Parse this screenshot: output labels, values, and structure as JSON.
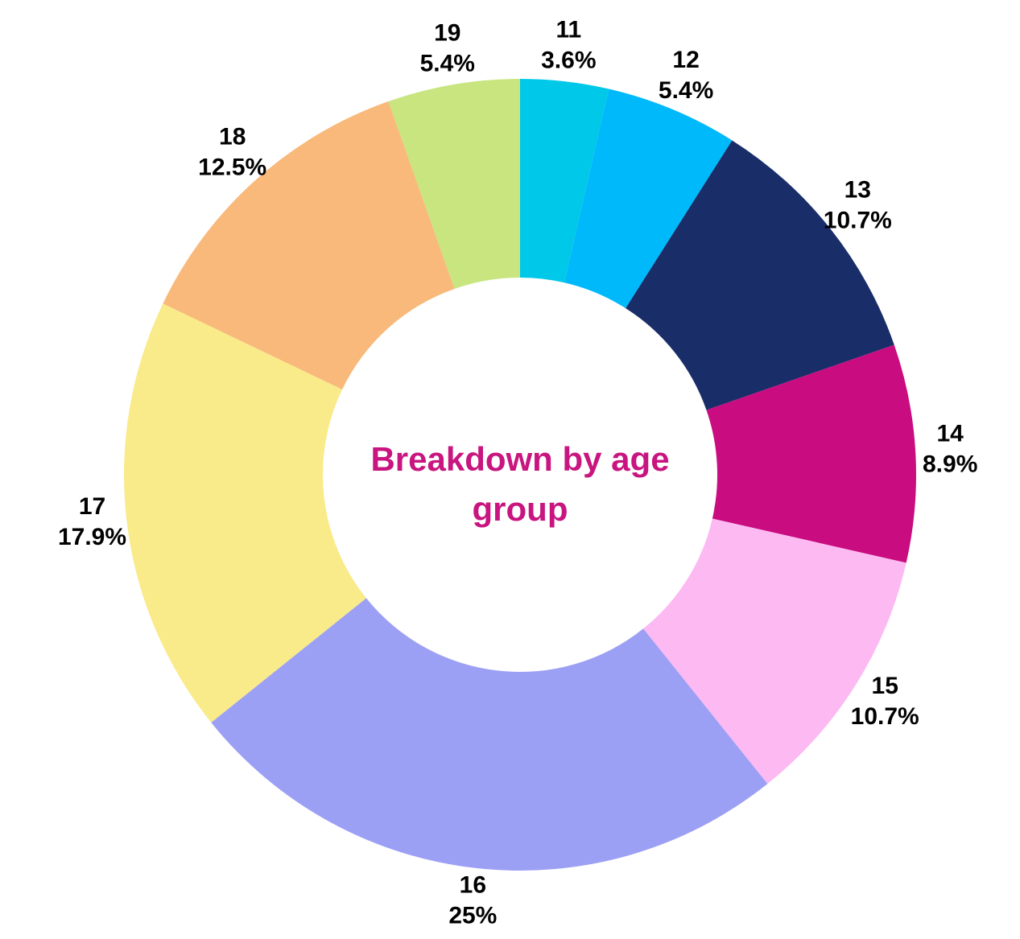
{
  "chart_data": {
    "type": "donut",
    "title": "Breakdown by age group",
    "categories": [
      "11",
      "12",
      "13",
      "14",
      "15",
      "16",
      "17",
      "18",
      "19"
    ],
    "values": [
      3.6,
      5.4,
      10.7,
      8.9,
      10.7,
      25,
      17.9,
      12.5,
      5.4
    ],
    "value_labels": [
      "3.6%",
      "5.4%",
      "10.7%",
      "8.9%",
      "10.7%",
      "25%",
      "17.9%",
      "12.5%",
      "5.4%"
    ],
    "colors": [
      "#00c8e8",
      "#00b9fa",
      "#192d69",
      "#c90c80",
      "#fdb9f2",
      "#9ca0f4",
      "#f9ea8a",
      "#f8b97a",
      "#c8e57f"
    ]
  }
}
